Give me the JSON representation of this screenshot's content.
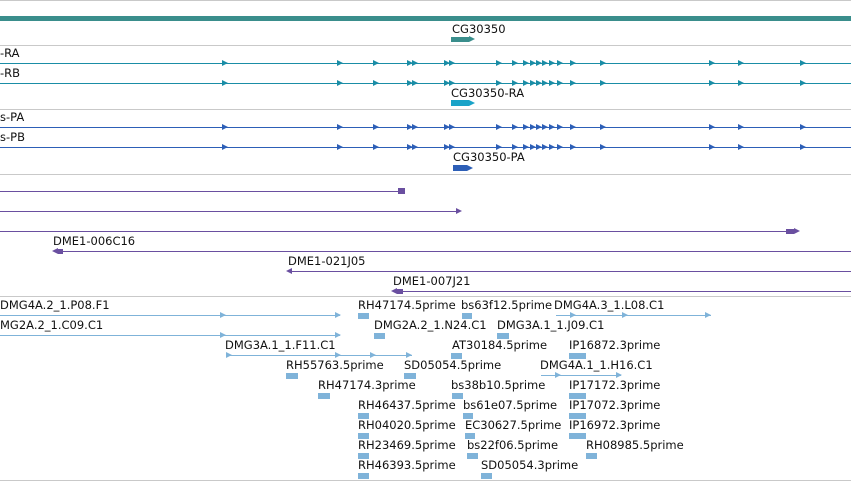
{
  "colors": {
    "gene_track": "#3a8e8c",
    "transcript_ra": "#1a8da6",
    "transcript_pa": "#2d5fb7",
    "clone": "#6a4fa0",
    "est": "#7fb3d9"
  },
  "gene": {
    "label": "CG30350"
  },
  "transcripts": {
    "ra": {
      "label": "-RA"
    },
    "rb": {
      "label": "-RB"
    },
    "mid_label": "CG30350-RA"
  },
  "proteins": {
    "pa": {
      "label": "s-PA"
    },
    "pb": {
      "label": "s-PB"
    },
    "mid_label": "CG30350-PA"
  },
  "clones": [
    {
      "label": "DME1-006C16"
    },
    {
      "label": "DME1-021J05"
    },
    {
      "label": "DME1-007J21"
    }
  ],
  "ests": [
    "DMG4A.2_1.P08.F1",
    "MG2A.2_1.C09.C1",
    "RH47174.5prime",
    "bs63f12.5prime",
    "DMG4A.3_1.L08.C1",
    "DMG2A.2_1.N24.C1",
    "DMG3A.1_1.J09.C1",
    "DMG3A.1_1.F11.C1",
    "AT30184.5prime",
    "IP16872.3prime",
    "RH55763.5prime",
    "SD05054.5prime",
    "DMG4A.1_1.H16.C1",
    "RH47174.3prime",
    "bs38b10.5prime",
    "IP17172.3prime",
    "RH46437.5prime",
    "bs61e07.5prime",
    "IP17072.3prime",
    "RH04020.5prime",
    "EC30627.5prime",
    "IP16972.3prime",
    "RH23469.5prime",
    "bs22f06.5prime",
    "RH08985.5prime",
    "RH46393.5prime",
    "SD05054.3prime"
  ]
}
